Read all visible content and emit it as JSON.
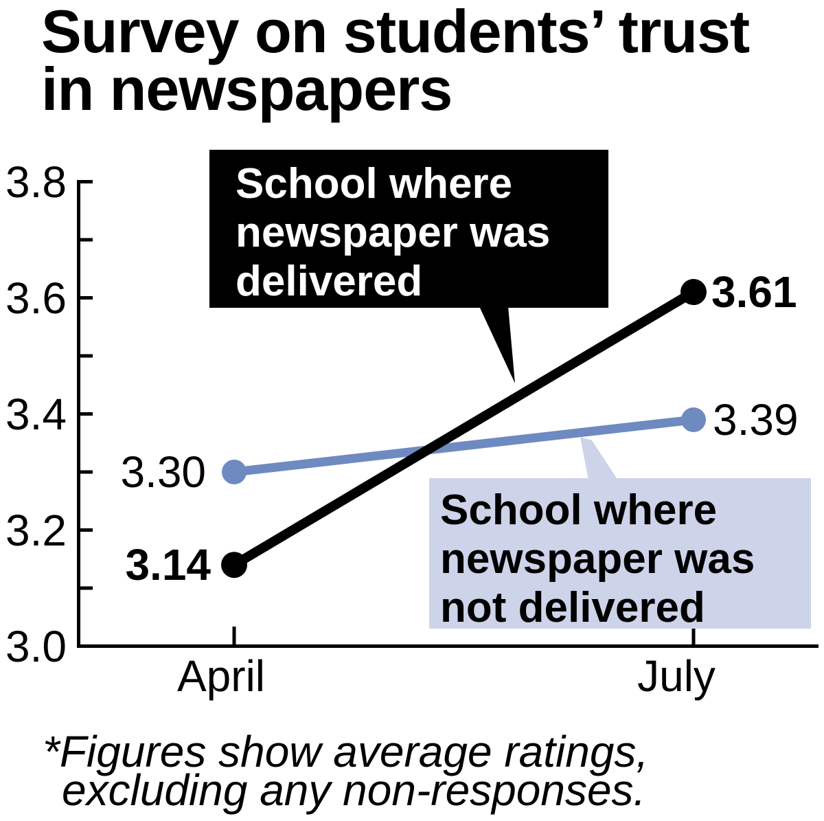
{
  "title": {
    "lines": [
      "Survey on students’ trust",
      "in newspapers"
    ]
  },
  "callouts": {
    "delivered": {
      "lines": [
        "School where",
        "newspaper was",
        "delivered"
      ]
    },
    "not_delivered": {
      "lines": [
        "School where",
        "newspaper was",
        "not delivered"
      ]
    }
  },
  "footnote": {
    "lines": [
      "*Figures show average ratings,",
      "excluding any non-responses."
    ]
  },
  "colors": {
    "delivered_line": "#000000",
    "not_delivered_line": "#6e8ac1",
    "dark_box_bg": "#000000",
    "dark_box_text": "#ffffff",
    "light_box_bg": "#cdd4e9",
    "light_box_text": "#000000",
    "axis": "#000000",
    "background": "#ffffff"
  },
  "chart_data": {
    "type": "line",
    "title": "Survey on students’ trust in newspapers",
    "categories": [
      "April",
      "July"
    ],
    "series": [
      {
        "name": "School where newspaper was delivered",
        "values": [
          3.14,
          3.61
        ],
        "value_labels": [
          "3.14",
          "3.61"
        ],
        "color": "#000000"
      },
      {
        "name": "School where newspaper was not delivered",
        "values": [
          3.3,
          3.39
        ],
        "value_labels": [
          "3.30",
          "3.39"
        ],
        "color": "#6e8ac1"
      }
    ],
    "ylim": [
      3.0,
      3.8
    ],
    "y_ticks_labeled": [
      3.0,
      3.2,
      3.4,
      3.6,
      3.8
    ],
    "y_tick_labels": [
      "3.0",
      "3.2",
      "3.4",
      "3.6",
      "3.8"
    ],
    "y_ticks_minor": [
      3.1,
      3.2,
      3.3,
      3.4,
      3.5,
      3.6,
      3.7,
      3.8
    ],
    "xlabel": "",
    "ylabel": "",
    "grid": false,
    "legend_position": "callouts",
    "note": "*Figures show average ratings, excluding any non-responses."
  }
}
